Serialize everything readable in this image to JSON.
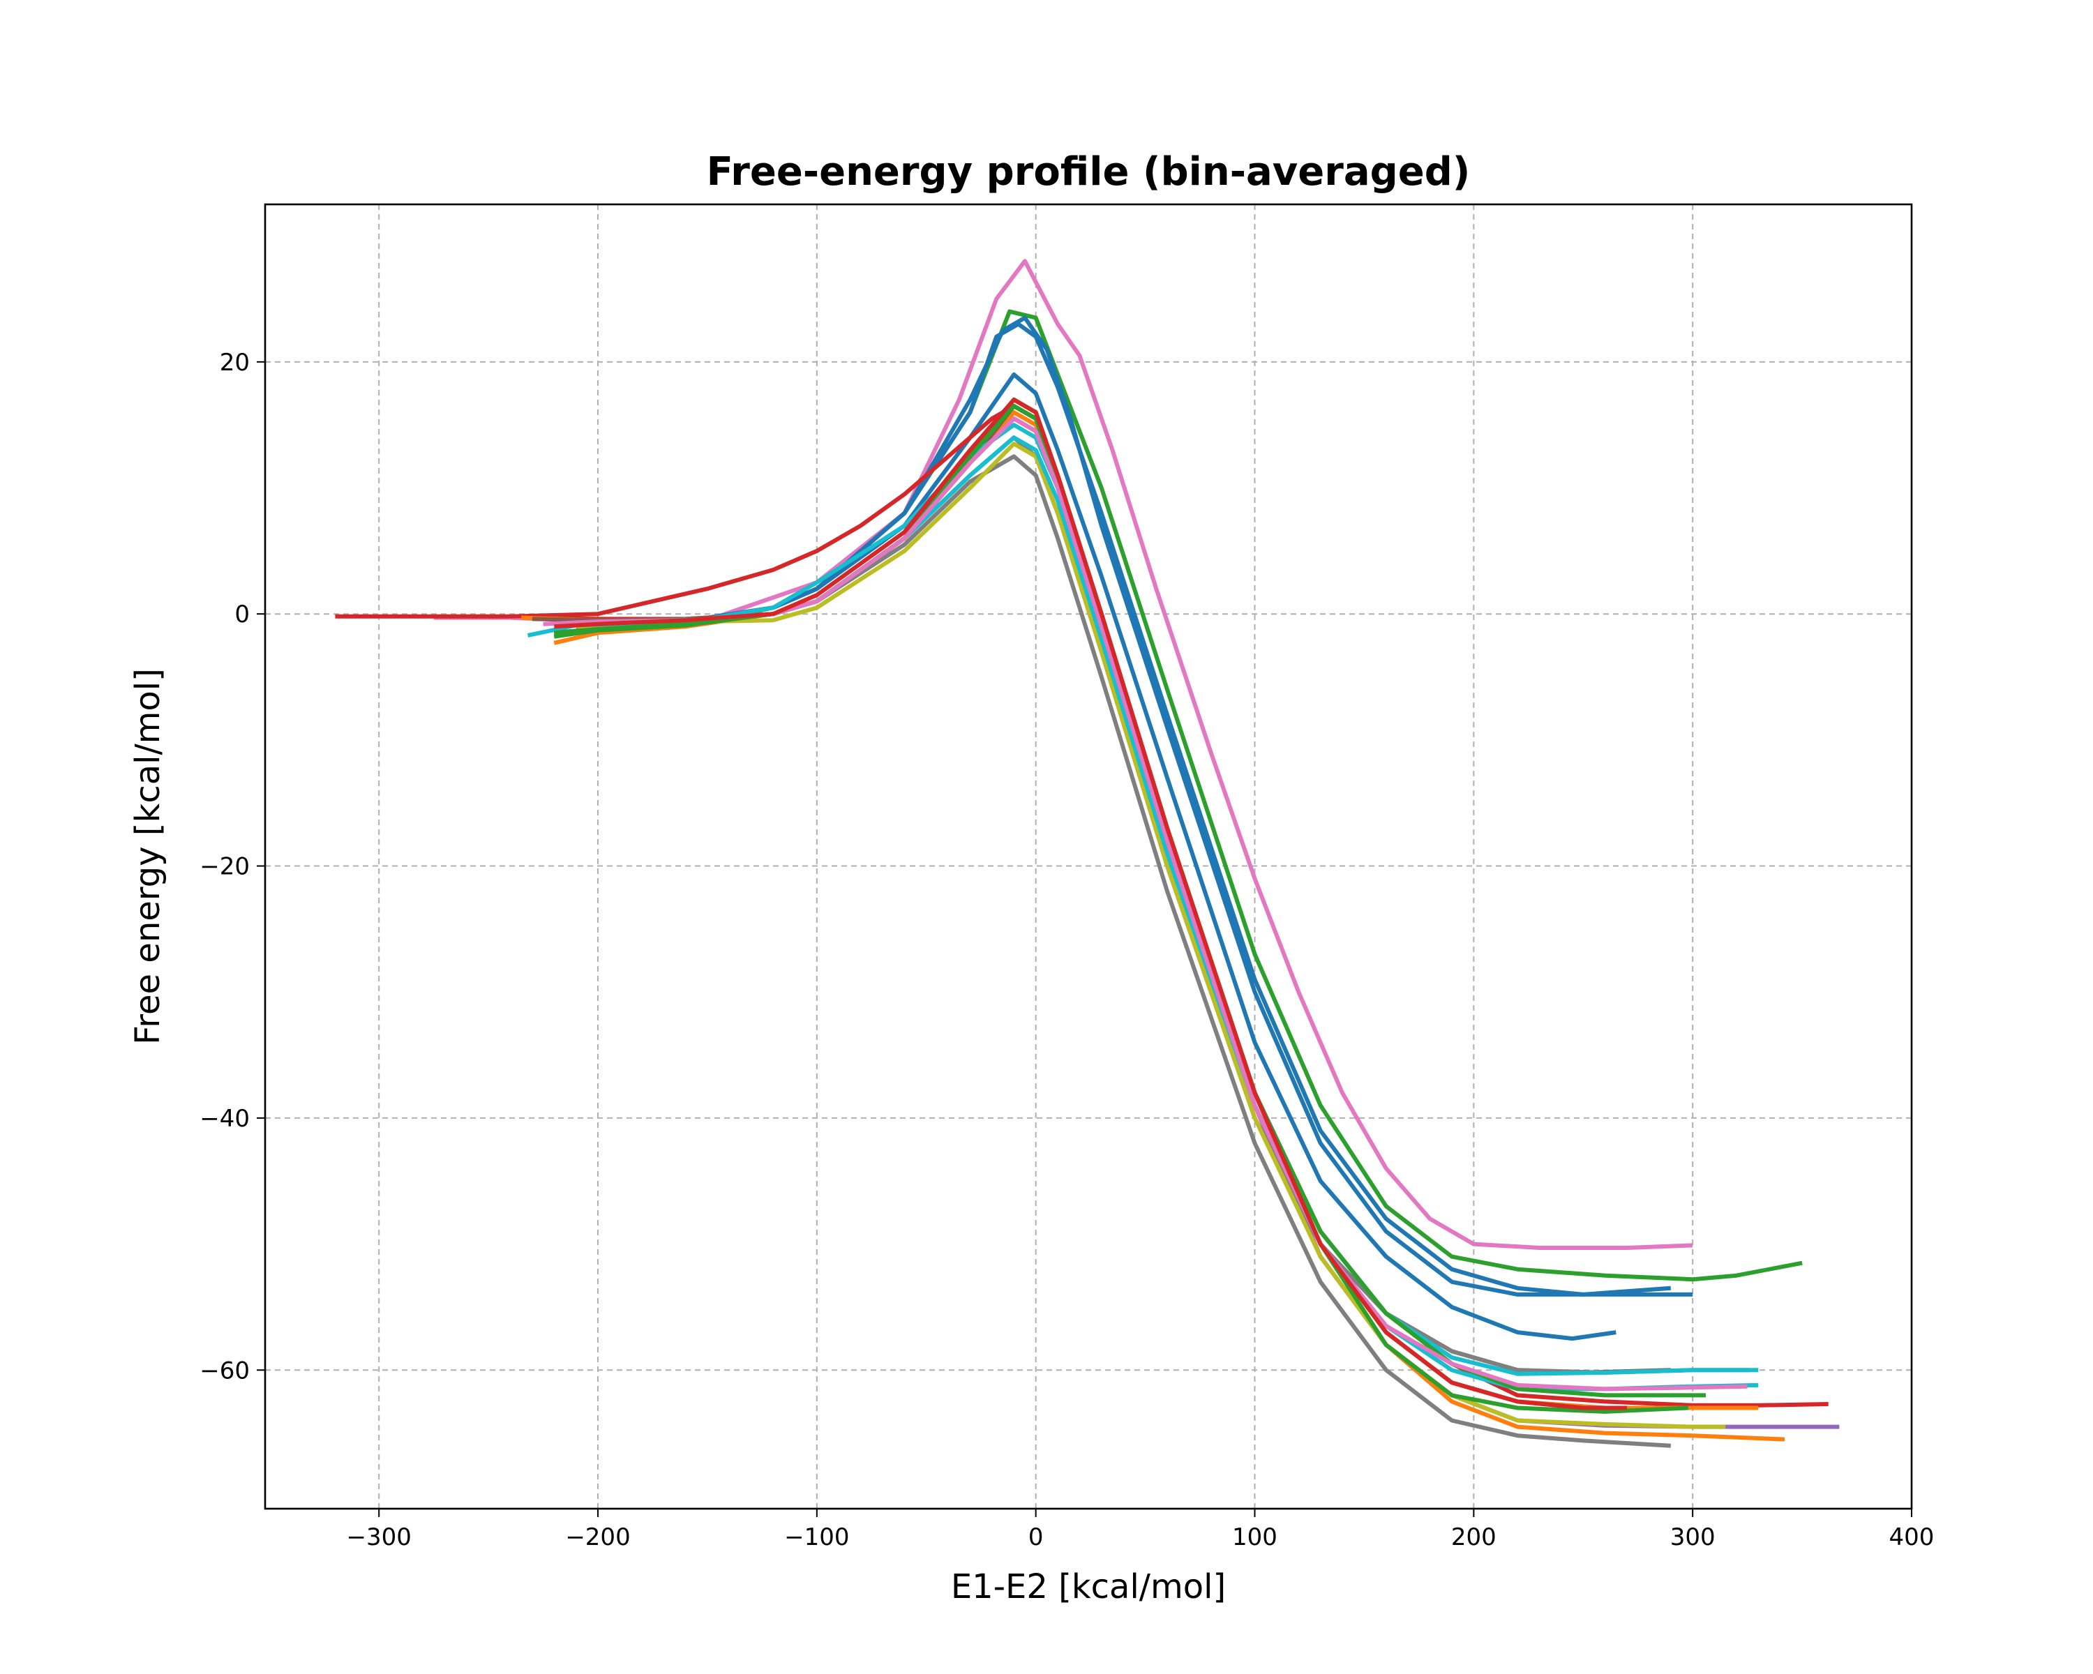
{
  "chart_data": {
    "type": "line",
    "title": "Free-energy profile (bin-averaged)",
    "xlabel": "E1-E2 [kcal/mol]",
    "ylabel": "Free energy [kcal/mol]",
    "xlim": [
      -352,
      400
    ],
    "ylim": [
      -71,
      32.5
    ],
    "xticks": [
      -300,
      -200,
      -100,
      0,
      100,
      200,
      300,
      400
    ],
    "yticks": [
      -60,
      -40,
      -20,
      0,
      20
    ],
    "xtick_labels": [
      "−300",
      "−200",
      "−100",
      "0",
      "100",
      "200",
      "300",
      "400"
    ],
    "ytick_labels": [
      "−60",
      "−40",
      "−20",
      "0",
      "20"
    ],
    "grid": true,
    "legend": "none",
    "series": [
      {
        "color": "#e377c2",
        "x": [
          -275,
          -240,
          -200,
          -150,
          -100,
          -60,
          -35,
          -18,
          -5,
          10,
          20,
          35,
          55,
          80,
          100,
          120,
          140,
          160,
          180,
          200,
          230,
          270,
          300
        ],
        "y": [
          -0.3,
          -0.3,
          -0.6,
          -0.5,
          2.5,
          8,
          17,
          25,
          28,
          23,
          20.5,
          13,
          2,
          -11,
          -21,
          -30,
          -38,
          -44,
          -48,
          -50,
          -50.3,
          -50.3,
          -50.1
        ]
      },
      {
        "color": "#2ca02c",
        "x": [
          -220,
          -200,
          -160,
          -120,
          -100,
          -60,
          -30,
          -12,
          0,
          10,
          30,
          60,
          100,
          130,
          160,
          190,
          220,
          260,
          300,
          320,
          350
        ],
        "y": [
          -1.8,
          -1.2,
          -1,
          0.5,
          2,
          8,
          16,
          24,
          23.5,
          19,
          10,
          -6,
          -27,
          -39,
          -47,
          -51,
          -52,
          -52.5,
          -52.8,
          -52.5,
          -51.5
        ]
      },
      {
        "color": "#1f77b4",
        "x": [
          -220,
          -200,
          -160,
          -120,
          -100,
          -60,
          -30,
          -18,
          -8,
          0,
          10,
          30,
          60,
          100,
          130,
          160,
          190,
          220,
          250,
          290
        ],
        "y": [
          -1.5,
          -1.2,
          -0.6,
          0.5,
          2,
          8,
          16,
          22,
          23,
          22,
          18,
          8,
          -8,
          -29,
          -41,
          -48,
          -52,
          -53.5,
          -54,
          -53.5
        ]
      },
      {
        "color": "#1f77b4",
        "x": [
          -220,
          -200,
          -160,
          -120,
          -100,
          -60,
          -30,
          -15,
          -5,
          5,
          15,
          30,
          60,
          100,
          130,
          160,
          190,
          220,
          250,
          300
        ],
        "y": [
          -1.5,
          -1.2,
          -0.6,
          0.5,
          2,
          8,
          17,
          22.5,
          23.5,
          21,
          16,
          7,
          -9,
          -30,
          -42,
          -49,
          -53,
          -54,
          -54,
          -54
        ]
      },
      {
        "color": "#1f77b4",
        "x": [
          -210,
          -180,
          -150,
          -120,
          -100,
          -60,
          -30,
          -10,
          0,
          10,
          30,
          60,
          100,
          130,
          160,
          190,
          220,
          245,
          265
        ],
        "y": [
          -1.2,
          -0.8,
          -0.3,
          0.5,
          2,
          7,
          14,
          19,
          17.5,
          13,
          3,
          -13,
          -34,
          -45,
          -51,
          -55,
          -57,
          -57.5,
          -57
        ]
      },
      {
        "color": "#d62728",
        "x": [
          -320,
          -280,
          -240,
          -200,
          -180,
          -150,
          -120,
          -100,
          -80,
          -60,
          -40,
          -20,
          -10,
          0,
          10,
          30,
          60,
          100,
          130,
          160,
          190,
          220,
          260,
          300,
          330,
          362
        ],
        "y": [
          -0.2,
          -0.2,
          -0.2,
          0,
          0.8,
          2,
          3.5,
          5,
          7,
          9.5,
          12.5,
          15.5,
          16.5,
          15.5,
          11,
          0,
          -17,
          -38,
          -49,
          -55.5,
          -59.5,
          -62,
          -62.5,
          -62.8,
          -62.8,
          -62.7
        ]
      },
      {
        "color": "#d62728",
        "x": [
          -230,
          -200,
          -160,
          -120,
          -100,
          -60,
          -30,
          -10,
          0,
          10,
          30,
          60,
          100,
          130,
          160,
          190,
          220,
          250,
          272
        ],
        "y": [
          -0.3,
          -0.4,
          -0.4,
          0,
          1,
          6,
          12,
          16.5,
          15.5,
          11,
          0,
          -17,
          -38,
          -50,
          -57,
          -61,
          -62.5,
          -63,
          -63
        ]
      },
      {
        "color": "#ff7f0e",
        "x": [
          -220,
          -200,
          -160,
          -120,
          -100,
          -60,
          -30,
          -10,
          0,
          10,
          30,
          60,
          100,
          130,
          160,
          190,
          220,
          260,
          300,
          342
        ],
        "y": [
          -2.3,
          -1.5,
          -1,
          0,
          1,
          6,
          12,
          16,
          15,
          10,
          -1,
          -18,
          -39,
          -51,
          -58,
          -62.5,
          -64.5,
          -65,
          -65.2,
          -65.5
        ]
      },
      {
        "color": "#ff7f0e",
        "x": [
          -235,
          -200,
          -160,
          -120,
          -100,
          -60,
          -30,
          -10,
          0,
          10,
          30,
          60,
          100,
          130,
          160,
          190,
          220,
          260,
          300,
          330
        ],
        "y": [
          -0.3,
          -0.5,
          -0.5,
          0,
          1,
          6,
          12,
          15.5,
          14.5,
          10,
          -1,
          -18,
          -38,
          -50,
          -57,
          -61,
          -62.5,
          -63,
          -63,
          -63
        ]
      },
      {
        "color": "#9467bd",
        "x": [
          -220,
          -200,
          -160,
          -120,
          -100,
          -60,
          -30,
          -10,
          0,
          10,
          30,
          60,
          100,
          130,
          160,
          190,
          220,
          260,
          300,
          367
        ],
        "y": [
          -1.5,
          -1.2,
          -0.7,
          0,
          1,
          6,
          12,
          15.5,
          14.5,
          10,
          -1,
          -18,
          -39,
          -51,
          -58,
          -62,
          -64,
          -64.4,
          -64.5,
          -64.5
        ]
      },
      {
        "color": "#8c564b",
        "x": [
          -230,
          -200,
          -160,
          -120,
          -100,
          -60,
          -30,
          -10,
          0,
          10,
          30,
          60,
          100,
          130,
          160,
          190,
          220,
          250,
          290
        ],
        "y": [
          -0.4,
          -0.5,
          -0.4,
          0,
          1,
          6,
          12,
          16.5,
          15.5,
          11,
          0,
          -17,
          -38,
          -49,
          -55.5,
          -58.5,
          -60,
          -60.2,
          -60
        ]
      },
      {
        "color": "#7f7f7f",
        "x": [
          -210,
          -180,
          -150,
          -120,
          -100,
          -60,
          -30,
          -10,
          0,
          10,
          30,
          60,
          100,
          130,
          160,
          190,
          220,
          250,
          290
        ],
        "y": [
          -1,
          -0.8,
          -0.5,
          0,
          1,
          5.5,
          10.5,
          12.5,
          11,
          6,
          -5,
          -22,
          -42,
          -53,
          -60,
          -64,
          -65.2,
          -65.6,
          -66
        ]
      },
      {
        "color": "#7f7f7f",
        "x": [
          -210,
          -180,
          -150,
          -120,
          -100,
          -60,
          -30,
          -10,
          0,
          10,
          30,
          60,
          100,
          130,
          160,
          190,
          220,
          260,
          300,
          326
        ],
        "y": [
          -0.8,
          -0.6,
          -0.4,
          0,
          1,
          6,
          11,
          14,
          12.5,
          8,
          -3,
          -20,
          -40,
          -50,
          -55.5,
          -58.5,
          -60,
          -60.2,
          -60,
          -60
        ]
      },
      {
        "color": "#bcbd22",
        "x": [
          -210,
          -180,
          -150,
          -120,
          -100,
          -60,
          -30,
          -10,
          0,
          10,
          30,
          60,
          100,
          130,
          160,
          190,
          220,
          260,
          300,
          315
        ],
        "y": [
          -1,
          -0.9,
          -0.6,
          -0.5,
          0.5,
          5,
          10,
          13.5,
          12.5,
          8,
          -3,
          -20,
          -40,
          -51,
          -58,
          -62,
          -64,
          -64.3,
          -64.5,
          -64.5
        ]
      },
      {
        "color": "#17becf",
        "x": [
          -232,
          -210,
          -180,
          -150,
          -120,
          -100,
          -60,
          -30,
          -10,
          0,
          10,
          30,
          60,
          100,
          130,
          160,
          190,
          220,
          260,
          300,
          330
        ],
        "y": [
          -1.7,
          -0.9,
          -0.7,
          -0.4,
          0.5,
          2.5,
          7,
          12.5,
          15,
          14,
          10,
          -1,
          -18,
          -38,
          -49,
          -55.5,
          -59,
          -60.3,
          -60.2,
          -60,
          -60
        ]
      },
      {
        "color": "#17becf",
        "x": [
          -210,
          -180,
          -150,
          -120,
          -100,
          -60,
          -30,
          -10,
          0,
          10,
          30,
          60,
          100,
          130,
          160,
          190,
          220,
          260,
          300,
          330
        ],
        "y": [
          -0.7,
          -0.6,
          -0.4,
          0,
          1,
          6,
          11,
          14,
          13,
          9,
          -2,
          -19,
          -39,
          -50,
          -56.5,
          -60,
          -61.5,
          -61.5,
          -61.3,
          -61.2
        ]
      },
      {
        "color": "#2ca02c",
        "x": [
          -220,
          -200,
          -160,
          -120,
          -100,
          -60,
          -30,
          -10,
          0,
          10,
          30,
          60,
          100,
          130,
          160,
          190,
          220,
          260,
          298
        ],
        "y": [
          -1.8,
          -1.3,
          -0.9,
          0,
          1,
          6,
          12.5,
          17,
          16,
          11,
          0,
          -17,
          -38,
          -50,
          -58,
          -62,
          -63,
          -63.3,
          -63
        ]
      },
      {
        "color": "#2ca02c",
        "x": [
          -220,
          -200,
          -160,
          -120,
          -100,
          -60,
          -30,
          -10,
          0,
          10,
          30,
          60,
          100,
          130,
          160,
          190,
          220,
          260,
          306
        ],
        "y": [
          -1.5,
          -1.2,
          -0.8,
          0,
          1,
          6,
          12.5,
          16.5,
          15.5,
          10.5,
          -0.5,
          -18,
          -38,
          -49,
          -55.5,
          -59.5,
          -61.5,
          -62,
          -62
        ]
      },
      {
        "color": "#e377c2",
        "x": [
          -225,
          -200,
          -160,
          -120,
          -100,
          -60,
          -30,
          -10,
          0,
          10,
          30,
          60,
          100,
          130,
          160,
          190,
          220,
          260,
          295,
          325
        ],
        "y": [
          -0.8,
          -0.6,
          -0.5,
          0,
          1,
          6,
          12,
          15.5,
          14.5,
          10,
          -1,
          -18,
          -39,
          -50,
          -56.5,
          -59.5,
          -61.2,
          -61.5,
          -61.4,
          -61.3
        ]
      },
      {
        "color": "#d62728",
        "x": [
          -220,
          -200,
          -160,
          -120,
          -100,
          -60,
          -30,
          -10,
          0,
          10,
          30,
          60,
          100,
          130,
          160,
          190,
          220,
          250,
          270
        ],
        "y": [
          -1,
          -0.8,
          -0.5,
          0,
          1.5,
          6.5,
          13,
          17,
          16,
          11,
          0,
          -17,
          -38,
          -50,
          -57,
          -61,
          -62.5,
          -63,
          -63
        ]
      }
    ]
  }
}
